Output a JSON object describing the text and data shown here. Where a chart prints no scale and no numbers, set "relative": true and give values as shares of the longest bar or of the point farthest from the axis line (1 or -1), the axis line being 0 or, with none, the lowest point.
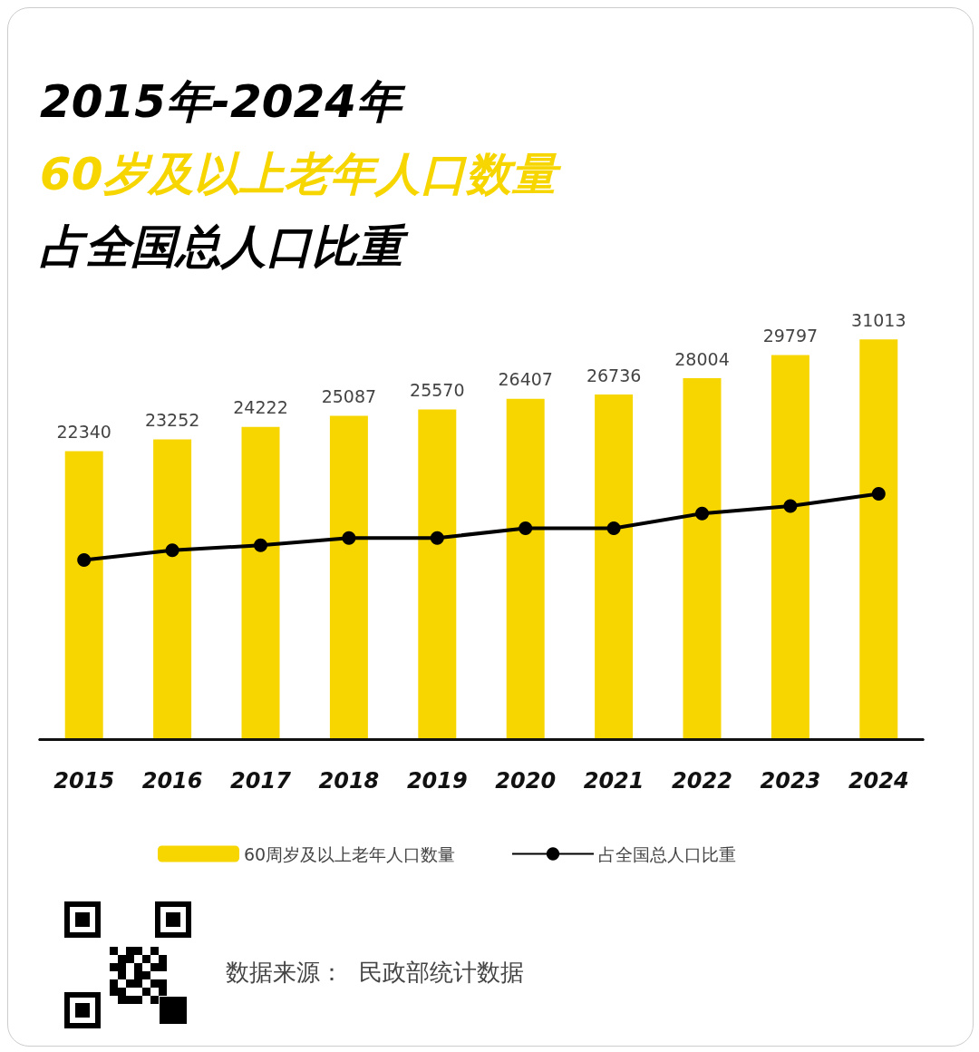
{
  "chart_data": [
    {
      "type": "bar",
      "title": "2015年-2024年",
      "subtitle": "60岁及以上老年人口数量占全国总人口比重",
      "categories": [
        "2015",
        "2016",
        "2017",
        "2018",
        "2019",
        "2020",
        "2021",
        "2022",
        "2023",
        "2024"
      ],
      "series": [
        {
          "name": "60周岁及以上老年人口数量",
          "color": "#f7d600",
          "values": [
            22340,
            23252,
            24222,
            25087,
            25570,
            26407,
            26736,
            28004,
            29797,
            31013
          ]
        }
      ],
      "data_labels": true,
      "legend": "bottom",
      "grid": false,
      "annotations": [
        "数据来源：  民政部统计数据"
      ]
    },
    {
      "type": "line",
      "relative": true,
      "categories": [
        "2015",
        "2016",
        "2017",
        "2018",
        "2019",
        "2020",
        "2021",
        "2022",
        "2023",
        "2024"
      ],
      "tick_labels": false,
      "series": [
        {
          "name": "占全国总人口比重",
          "color": "#000000",
          "values": [
            0.73,
            0.77,
            0.79,
            0.82,
            0.82,
            0.86,
            0.86,
            0.92,
            0.95,
            1
          ]
        }
      ],
      "marker": "circle",
      "legend": "bottom"
    }
  ]
}
